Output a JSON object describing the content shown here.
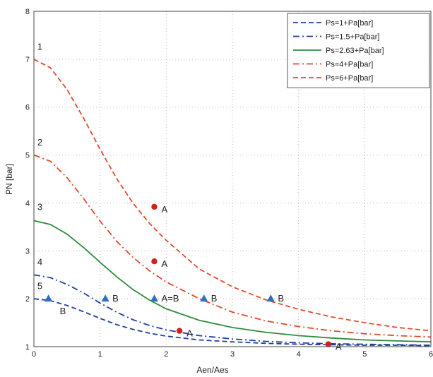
{
  "chart_data": {
    "type": "line",
    "title": "",
    "xlabel": "Aen/Aes",
    "ylabel": "PN [bar]",
    "xlim": [
      0,
      6
    ],
    "ylim": [
      1,
      8
    ],
    "xticks": [
      "0",
      "1",
      "2",
      "3",
      "4",
      "5",
      "6"
    ],
    "yticks": [
      "1",
      "2",
      "3",
      "4",
      "5",
      "6",
      "7",
      "8"
    ],
    "grid": true,
    "legend_position": "top-right",
    "series": [
      {
        "name": "Ps=1+Pa[bar]",
        "color": "#1f3f9f",
        "dash": "dashed",
        "x": [
          0,
          0.25,
          0.5,
          0.75,
          1.0,
          1.25,
          1.5,
          1.75,
          2.0,
          2.5,
          3.0,
          3.5,
          4.0,
          4.5,
          5.0,
          5.5,
          6.0
        ],
        "y": [
          2.0,
          1.96,
          1.86,
          1.73,
          1.59,
          1.46,
          1.36,
          1.28,
          1.22,
          1.14,
          1.1,
          1.07,
          1.05,
          1.04,
          1.03,
          1.03,
          1.02
        ]
      },
      {
        "name": "Ps=1.5+Pa[bar]",
        "color": "#1f3f9f",
        "dash": "dashdot",
        "x": [
          0,
          0.25,
          0.5,
          0.75,
          1.0,
          1.25,
          1.5,
          1.75,
          2.0,
          2.5,
          3.0,
          3.5,
          4.0,
          4.5,
          5.0,
          5.5,
          6.0
        ],
        "y": [
          2.5,
          2.44,
          2.3,
          2.12,
          1.91,
          1.72,
          1.56,
          1.44,
          1.35,
          1.23,
          1.16,
          1.11,
          1.08,
          1.06,
          1.05,
          1.04,
          1.03
        ]
      },
      {
        "name": "Ps=2.63+Pa[bar]",
        "color": "#2e8b3c",
        "dash": "solid",
        "x": [
          0,
          0.25,
          0.5,
          0.75,
          1.0,
          1.25,
          1.5,
          1.75,
          2.0,
          2.5,
          3.0,
          3.5,
          4.0,
          4.5,
          5.0,
          5.5,
          6.0
        ],
        "y": [
          3.63,
          3.55,
          3.35,
          3.07,
          2.76,
          2.46,
          2.19,
          1.97,
          1.79,
          1.55,
          1.4,
          1.3,
          1.23,
          1.18,
          1.14,
          1.12,
          1.1
        ]
      },
      {
        "name": "Ps=4+Pa[bar]",
        "color": "#e04a2a",
        "dash": "dashdot",
        "x": [
          0,
          0.25,
          0.5,
          0.75,
          1.0,
          1.25,
          1.5,
          1.75,
          2.0,
          2.5,
          3.0,
          3.5,
          4.0,
          4.5,
          5.0,
          5.5,
          6.0
        ],
        "y": [
          5.0,
          4.87,
          4.53,
          4.09,
          3.62,
          3.2,
          2.86,
          2.58,
          2.35,
          2.0,
          1.72,
          1.54,
          1.42,
          1.33,
          1.27,
          1.23,
          1.2
        ]
      },
      {
        "name": "Ps=6+Pa[bar]",
        "color": "#e04a2a",
        "dash": "dashed",
        "x": [
          0,
          0.25,
          0.5,
          0.75,
          1.0,
          1.25,
          1.5,
          1.75,
          2.0,
          2.5,
          3.0,
          3.5,
          4.0,
          4.5,
          5.0,
          5.5,
          6.0
        ],
        "y": [
          7.0,
          6.82,
          6.37,
          5.77,
          5.12,
          4.51,
          3.99,
          3.57,
          3.22,
          2.62,
          2.25,
          1.98,
          1.78,
          1.62,
          1.5,
          1.4,
          1.33
        ]
      }
    ],
    "curve_labels": [
      {
        "text": "1",
        "x": 0.18,
        "y": 7.2
      },
      {
        "text": "2",
        "x": 0.18,
        "y": 5.2
      },
      {
        "text": "3",
        "x": 0.18,
        "y": 3.85
      },
      {
        "text": "4",
        "x": 0.18,
        "y": 2.7
      },
      {
        "text": "5",
        "x": 0.18,
        "y": 2.2
      }
    ],
    "points_A": [
      {
        "x": 1.82,
        "y": 3.92,
        "label": "A"
      },
      {
        "x": 1.82,
        "y": 2.78,
        "label": "A"
      },
      {
        "x": 2.2,
        "y": 1.33,
        "label": "A"
      },
      {
        "x": 4.45,
        "y": 1.05,
        "label": "A"
      }
    ],
    "points_B": [
      {
        "x": 0.22,
        "y": 2.0,
        "label": "B"
      },
      {
        "x": 1.08,
        "y": 2.0,
        "label": "B"
      },
      {
        "x": 1.82,
        "y": 2.0,
        "label": "A=B"
      },
      {
        "x": 2.57,
        "y": 2.0,
        "label": "B"
      },
      {
        "x": 3.58,
        "y": 2.0,
        "label": "B"
      }
    ],
    "colors": {
      "marker_A": "#d02020",
      "marker_B": "#2f6fc0",
      "grid": "#b8b8b8"
    }
  }
}
